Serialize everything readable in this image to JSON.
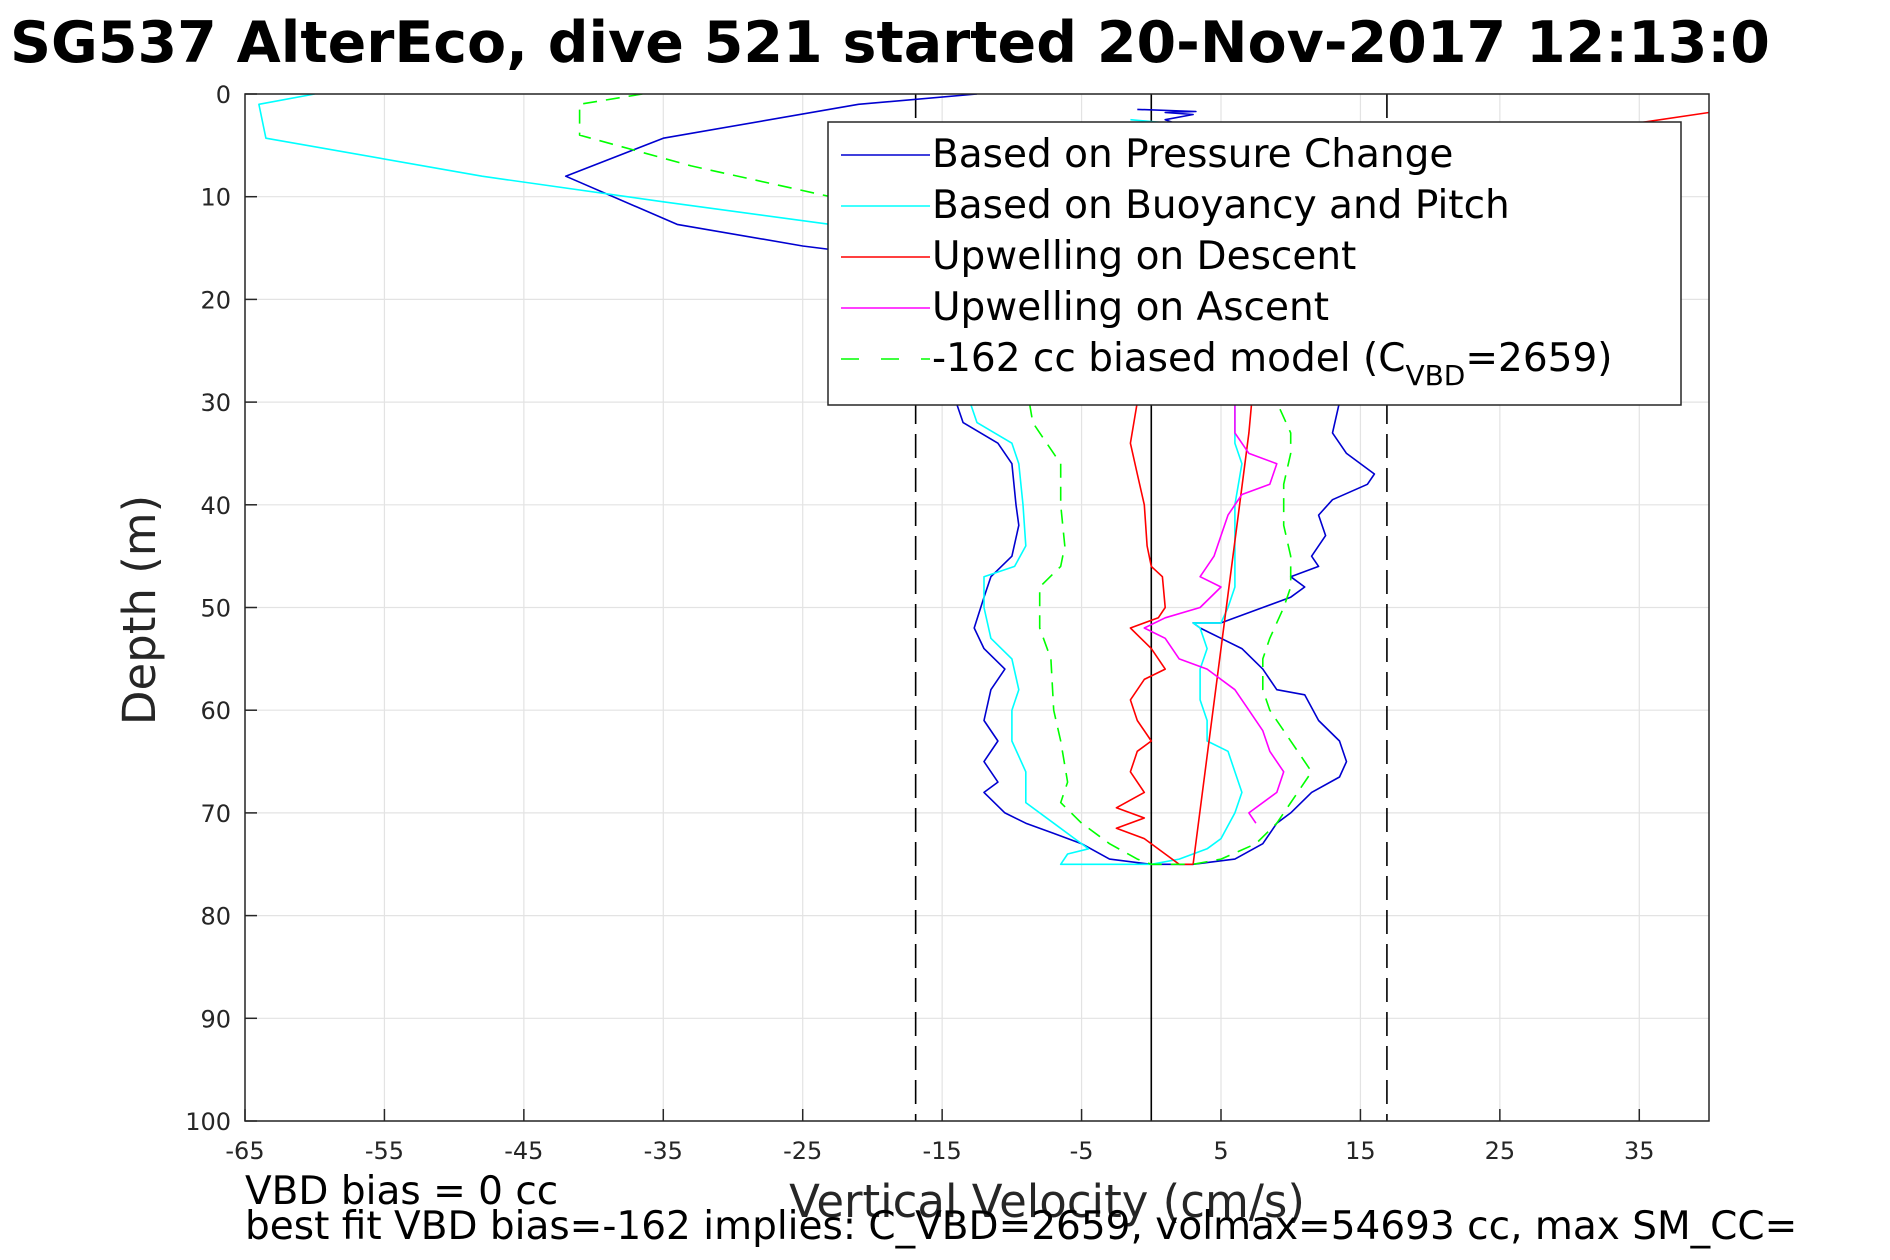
{
  "chart_data": {
    "type": "line",
    "title": "SG537 AlterEco, dive 521 started 20-Nov-2017 12:13:0",
    "xlabel": "Vertical Velocity (cm/s)",
    "ylabel": "Depth (m)",
    "xlim": [
      -65,
      40
    ],
    "ylim": [
      0,
      100
    ],
    "y_reversed": true,
    "grid": true,
    "xticks": [
      -65,
      -55,
      -45,
      -35,
      -25,
      -15,
      -5,
      5,
      15,
      25,
      35
    ],
    "yticks": [
      0,
      10,
      20,
      30,
      40,
      50,
      60,
      70,
      80,
      90,
      100
    ],
    "legend_position": "top-right",
    "legend": [
      {
        "label": "Based on Pressure Change",
        "color": "#0000d0",
        "style": "solid"
      },
      {
        "label": "Based on Buoyancy and Pitch",
        "color": "#00ffff",
        "style": "solid"
      },
      {
        "label": "Upwelling on Descent",
        "color": "#ff0000",
        "style": "solid"
      },
      {
        "label": "Upwelling on Ascent",
        "color": "#ff00ff",
        "style": "solid"
      },
      {
        "label_main": "-162 cc biased model (C",
        "label_sub": "VBD",
        "label_end": "=2659)",
        "color": "#00ff00",
        "style": "dashed"
      }
    ],
    "reference_lines": [
      {
        "x": -16.9,
        "style": "dashed",
        "color": "#000000"
      },
      {
        "x": 0,
        "style": "solid",
        "color": "#000000"
      },
      {
        "x": 16.9,
        "style": "dashed",
        "color": "#000000"
      }
    ],
    "series": [
      {
        "key": "pressure",
        "color": "#0000d0",
        "dash": false,
        "points": [
          [
            -12.5,
            0
          ],
          [
            -21,
            1
          ],
          [
            -35,
            4.3
          ],
          [
            -42,
            8
          ],
          [
            -34,
            12.7
          ],
          [
            -25,
            14.8
          ],
          [
            -15,
            16.5
          ],
          [
            -13,
            20
          ],
          [
            -13,
            25
          ],
          [
            -14,
            30
          ],
          [
            -13.5,
            32
          ],
          [
            -11,
            34
          ],
          [
            -10,
            36
          ],
          [
            -9.7,
            40
          ],
          [
            -9.5,
            42
          ],
          [
            -10,
            45
          ],
          [
            -11.5,
            47
          ],
          [
            -12,
            49
          ],
          [
            -12.7,
            52
          ],
          [
            -12,
            54
          ],
          [
            -10.5,
            56
          ],
          [
            -11.5,
            58
          ],
          [
            -12,
            61
          ],
          [
            -11,
            63
          ],
          [
            -12,
            65
          ],
          [
            -11,
            67
          ],
          [
            -12,
            68
          ],
          [
            -10.5,
            70
          ],
          [
            -9,
            71
          ],
          [
            -7,
            72
          ],
          [
            -5,
            73
          ],
          [
            -3,
            74.5
          ],
          [
            0,
            75
          ],
          [
            3,
            75
          ],
          [
            6,
            74.5
          ],
          [
            8,
            73
          ],
          [
            9,
            71
          ],
          [
            10,
            70
          ],
          [
            11.5,
            68
          ],
          [
            13.5,
            66.5
          ],
          [
            14,
            65
          ],
          [
            13.5,
            63
          ],
          [
            12,
            61
          ],
          [
            11,
            58.5
          ],
          [
            9,
            58
          ],
          [
            8,
            56
          ],
          [
            6.5,
            54
          ],
          [
            5,
            53
          ],
          [
            3.5,
            52
          ],
          [
            3,
            51.5
          ],
          [
            5,
            51.5
          ],
          [
            8,
            50
          ],
          [
            10,
            49
          ],
          [
            11,
            48
          ],
          [
            10,
            47
          ],
          [
            12,
            46
          ],
          [
            11.5,
            45
          ],
          [
            12.5,
            43
          ],
          [
            12,
            41
          ],
          [
            13,
            39.5
          ],
          [
            15.5,
            38
          ],
          [
            16,
            37
          ],
          [
            14,
            35
          ],
          [
            13,
            33
          ],
          [
            13.5,
            30
          ],
          [
            13,
            25
          ],
          [
            12,
            20
          ],
          [
            10,
            15
          ],
          [
            6,
            10
          ],
          [
            3,
            5
          ],
          [
            2,
            3
          ],
          [
            1,
            2.5
          ],
          [
            3,
            2
          ],
          [
            1,
            1.8
          ],
          [
            3.2,
            1.7
          ],
          [
            -1,
            1.5
          ]
        ]
      },
      {
        "key": "buoyancy",
        "color": "#00ffff",
        "dash": false,
        "points": [
          [
            -60,
            0
          ],
          [
            -64,
            1
          ],
          [
            -63.5,
            4.3
          ],
          [
            -48,
            8
          ],
          [
            -35,
            10.5
          ],
          [
            -23,
            12.7
          ],
          [
            -15,
            16
          ],
          [
            -13,
            22
          ],
          [
            -13,
            30
          ],
          [
            -12.5,
            32
          ],
          [
            -10,
            34
          ],
          [
            -9.5,
            36
          ],
          [
            -9.2,
            40
          ],
          [
            -9,
            44
          ],
          [
            -9.8,
            46
          ],
          [
            -12,
            47
          ],
          [
            -12,
            50
          ],
          [
            -11.5,
            53
          ],
          [
            -10,
            55
          ],
          [
            -9.5,
            58
          ],
          [
            -10,
            60
          ],
          [
            -10,
            63
          ],
          [
            -9,
            66
          ],
          [
            -9,
            69
          ],
          [
            -7,
            71
          ],
          [
            -5.5,
            72.5
          ],
          [
            -4.5,
            73.5
          ],
          [
            -6,
            74
          ],
          [
            -6.5,
            75
          ],
          [
            0,
            75
          ],
          [
            2,
            74.5
          ],
          [
            4,
            73.5
          ],
          [
            5,
            72.5
          ],
          [
            6,
            70
          ],
          [
            6.5,
            68
          ],
          [
            6,
            66
          ],
          [
            5.5,
            64
          ],
          [
            4,
            63
          ],
          [
            4,
            61
          ],
          [
            3.5,
            59
          ],
          [
            3.5,
            56
          ],
          [
            4,
            54
          ],
          [
            3.5,
            52
          ],
          [
            3,
            51.5
          ],
          [
            5,
            51.5
          ],
          [
            5.5,
            50
          ],
          [
            6,
            48
          ],
          [
            6,
            44
          ],
          [
            6,
            40
          ],
          [
            6.5,
            36
          ],
          [
            6,
            34
          ],
          [
            6,
            30
          ],
          [
            5,
            20
          ],
          [
            3,
            10
          ],
          [
            2,
            5
          ],
          [
            1,
            2.8
          ],
          [
            -1.5,
            2.5
          ]
        ]
      },
      {
        "key": "descent",
        "color": "#ff0000",
        "dash": false,
        "points": [
          [
            -1,
            30
          ],
          [
            -1.5,
            34
          ],
          [
            -1,
            37
          ],
          [
            -0.5,
            40
          ],
          [
            -0.3,
            44
          ],
          [
            0,
            46
          ],
          [
            0.8,
            47
          ],
          [
            1,
            50
          ],
          [
            0.5,
            51
          ],
          [
            -1.5,
            52
          ],
          [
            0,
            54
          ],
          [
            1,
            56
          ],
          [
            -0.5,
            57
          ],
          [
            -1.5,
            59
          ],
          [
            -1,
            61
          ],
          [
            0,
            63
          ],
          [
            -1,
            64
          ],
          [
            -1.5,
            66
          ],
          [
            -0.5,
            68
          ],
          [
            -2.5,
            69.5
          ],
          [
            -0.5,
            70.5
          ],
          [
            -2.5,
            71.5
          ],
          [
            -0.5,
            72.5
          ],
          [
            1,
            74
          ],
          [
            2,
            75
          ],
          [
            3,
            75
          ]
        ]
      },
      {
        "key": "upwelling_descent_line",
        "color": "#ff0000",
        "dash": false,
        "points": [
          [
            3,
            75
          ],
          [
            7,
            33
          ],
          [
            7.2,
            30
          ]
        ]
      },
      {
        "key": "upwelling_descent_top",
        "color": "#ff0000",
        "dash": false,
        "points": [
          [
            35,
            2.8
          ],
          [
            40,
            1.8
          ]
        ]
      },
      {
        "key": "ascent",
        "color": "#ff00ff",
        "dash": false,
        "points": [
          [
            7.5,
            71
          ],
          [
            7,
            70
          ],
          [
            9,
            68
          ],
          [
            9.5,
            66
          ],
          [
            8.5,
            64
          ],
          [
            8,
            62
          ],
          [
            7,
            60
          ],
          [
            6,
            58
          ],
          [
            4,
            56
          ],
          [
            2,
            55
          ],
          [
            1,
            53
          ],
          [
            -0.5,
            52
          ],
          [
            1,
            51
          ],
          [
            3.5,
            50
          ],
          [
            5,
            48
          ],
          [
            3.5,
            47
          ],
          [
            4.5,
            45
          ],
          [
            5,
            43
          ],
          [
            5.5,
            41
          ],
          [
            6.5,
            39
          ],
          [
            8.5,
            38
          ],
          [
            9,
            36
          ],
          [
            7,
            35
          ],
          [
            6,
            33
          ],
          [
            6,
            31
          ],
          [
            6,
            30
          ]
        ]
      },
      {
        "key": "model",
        "color": "#00ff00",
        "dash": true,
        "points": [
          [
            -36.5,
            0
          ],
          [
            -41,
            1
          ],
          [
            -41,
            4
          ],
          [
            -33,
            7
          ],
          [
            -23,
            10
          ],
          [
            -17,
            13
          ],
          [
            -12,
            17
          ],
          [
            -10,
            22
          ],
          [
            -9,
            28
          ],
          [
            -8.5,
            32
          ],
          [
            -7.5,
            34
          ],
          [
            -6.5,
            36
          ],
          [
            -6.5,
            40
          ],
          [
            -6.2,
            44
          ],
          [
            -6.5,
            46
          ],
          [
            -8,
            48
          ],
          [
            -8,
            52
          ],
          [
            -7.2,
            55
          ],
          [
            -7,
            60
          ],
          [
            -6.5,
            63
          ],
          [
            -6,
            67
          ],
          [
            -6.5,
            69
          ],
          [
            -5,
            71
          ],
          [
            -3,
            73
          ],
          [
            -1,
            74.5
          ],
          [
            0,
            75
          ],
          [
            3,
            75
          ],
          [
            5,
            74.5
          ],
          [
            7.5,
            73
          ],
          [
            9,
            71
          ],
          [
            10.5,
            68
          ],
          [
            11.5,
            66
          ],
          [
            10.5,
            64
          ],
          [
            9.5,
            62
          ],
          [
            8.5,
            60
          ],
          [
            8,
            58
          ],
          [
            8,
            55
          ],
          [
            8.5,
            53
          ],
          [
            9.5,
            50
          ],
          [
            10,
            48
          ],
          [
            10,
            45
          ],
          [
            9.5,
            42
          ],
          [
            9.5,
            38
          ],
          [
            10,
            35
          ],
          [
            10,
            33
          ],
          [
            9,
            30
          ],
          [
            8,
            25
          ],
          [
            5,
            20
          ],
          [
            3,
            15
          ],
          [
            1,
            10
          ],
          [
            0,
            5
          ],
          [
            -1,
            2.5
          ]
        ]
      }
    ],
    "annotations": [
      "VBD bias = 0 cc",
      "best fit VBD bias=-162 implies: C_VBD=2659, volmax=54693 cc, max SM_CC="
    ]
  }
}
